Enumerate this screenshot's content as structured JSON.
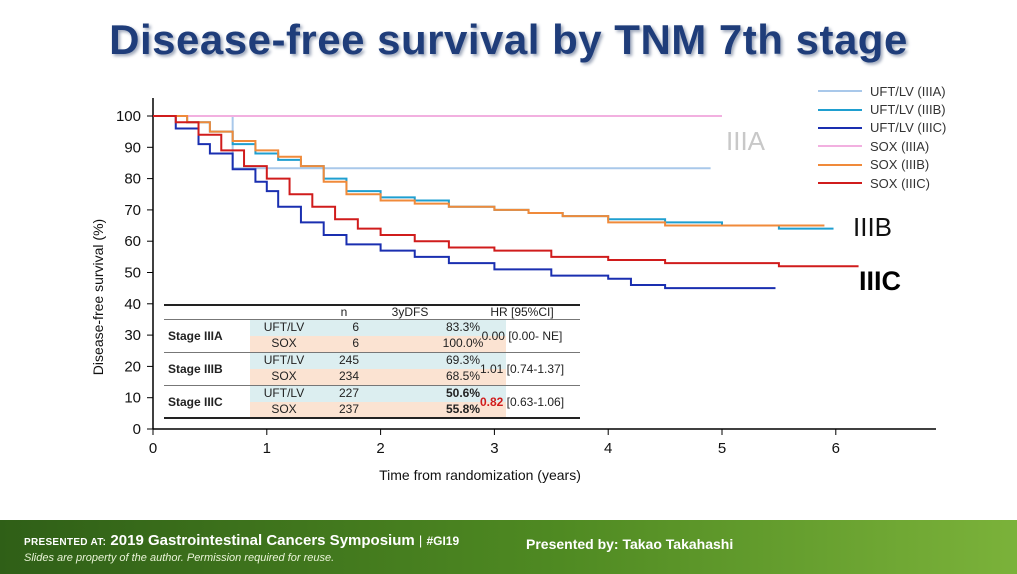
{
  "title": "Disease-free survival by TNM 7th stage",
  "chart_data": {
    "type": "line",
    "title": "Disease-free survival by TNM 7th stage",
    "xlabel": "Time from randomization (years)",
    "ylabel": "Disease-free survival (%)",
    "xlim": [
      0,
      7
    ],
    "ylim": [
      0,
      100
    ],
    "xticks": [
      0,
      1,
      2,
      3,
      4,
      5,
      6
    ],
    "yticks": [
      0,
      10,
      20,
      30,
      40,
      50,
      60,
      70,
      80,
      90,
      100
    ],
    "legend_position": "top-right",
    "series": [
      {
        "name": "UFT/LV (IIIA)",
        "color": "#a9c8ea",
        "x": [
          0,
          0.7,
          0.7,
          1.5,
          4.9
        ],
        "y": [
          100,
          100,
          83.3,
          83.3,
          83.3
        ]
      },
      {
        "name": "UFT/LV (IIIB)",
        "color": "#1f9fd0",
        "x": [
          0,
          0.3,
          0.5,
          0.7,
          0.9,
          1.1,
          1.3,
          1.5,
          1.7,
          2.0,
          2.3,
          2.6,
          3.0,
          3.3,
          3.6,
          4.0,
          4.5,
          5.0,
          5.5,
          5.98
        ],
        "y": [
          100,
          98,
          95,
          91,
          88,
          86,
          84,
          80,
          76,
          74,
          73,
          71,
          70,
          69,
          68,
          67,
          66,
          65,
          64,
          64
        ]
      },
      {
        "name": "UFT/LV (IIIC)",
        "color": "#1a2fb0",
        "x": [
          0,
          0.2,
          0.4,
          0.5,
          0.7,
          0.9,
          1.0,
          1.1,
          1.3,
          1.5,
          1.7,
          2.0,
          2.3,
          2.6,
          3.0,
          3.5,
          4.0,
          4.2,
          4.5,
          5.0,
          5.47
        ],
        "y": [
          100,
          96,
          91,
          88,
          83,
          79,
          76,
          71,
          66,
          62,
          59,
          57,
          55,
          53,
          51,
          49,
          48,
          46,
          45,
          45,
          45
        ]
      },
      {
        "name": "SOX (IIIA)",
        "color": "#f2b0e0",
        "x": [
          0,
          5.0
        ],
        "y": [
          100,
          100
        ]
      },
      {
        "name": "SOX (IIIB)",
        "color": "#f08a3a",
        "x": [
          0,
          0.3,
          0.5,
          0.7,
          0.9,
          1.1,
          1.3,
          1.5,
          1.7,
          2.0,
          2.3,
          2.6,
          3.0,
          3.3,
          3.6,
          4.0,
          4.5,
          5.0,
          5.5,
          5.9
        ],
        "y": [
          100,
          98,
          95,
          92,
          89,
          87,
          84,
          79,
          75,
          73,
          72,
          71,
          70,
          69,
          68,
          66,
          65,
          65,
          65,
          65
        ]
      },
      {
        "name": "SOX (IIIC)",
        "color": "#d01c1c",
        "x": [
          0,
          0.2,
          0.4,
          0.6,
          0.8,
          1.0,
          1.2,
          1.4,
          1.6,
          1.8,
          2.0,
          2.3,
          2.6,
          3.0,
          3.5,
          4.0,
          4.5,
          5.0,
          5.5,
          6.2
        ],
        "y": [
          100,
          98,
          94,
          89,
          84,
          80,
          75,
          71,
          67,
          64,
          62,
          60,
          58,
          57,
          55,
          54,
          53,
          53,
          52,
          52
        ]
      }
    ],
    "annotations": [
      "IIIA",
      "IIIB",
      "IIIC"
    ]
  },
  "stage_labels": {
    "iiia": "IIIA",
    "iiib": "IIIB",
    "iiic": "IIIC"
  },
  "table": {
    "headers": {
      "n": "n",
      "dfs": "3yDFS",
      "hr": "HR [95%CI]"
    },
    "rows": [
      {
        "stage": "Stage IIIA",
        "uft": {
          "arm": "UFT/LV",
          "n": "6",
          "dfs": "83.3%"
        },
        "sox": {
          "arm": "SOX",
          "n": "6",
          "dfs": "100.0%"
        },
        "hr_value": "0.00",
        "hr_ci": "[0.00- NE]"
      },
      {
        "stage": "Stage IIIB",
        "uft": {
          "arm": "UFT/LV",
          "n": "245",
          "dfs": "69.3%"
        },
        "sox": {
          "arm": "SOX",
          "n": "234",
          "dfs": "68.5%"
        },
        "hr_value": "1.01",
        "hr_ci": "[0.74-1.37]"
      },
      {
        "stage": "Stage IIIC",
        "uft": {
          "arm": "UFT/LV",
          "n": "227",
          "dfs": "50.6%"
        },
        "sox": {
          "arm": "SOX",
          "n": "237",
          "dfs": "55.8%"
        },
        "hr_value": "0.82",
        "hr_ci": "[0.63-1.06]"
      }
    ]
  },
  "footer": {
    "presented_at_label": "PRESENTED AT:",
    "symposium": "2019 Gastrointestinal Cancers Symposium",
    "separator": "|",
    "hashtag": "#GI19",
    "note": "Slides are property of the author. Permission required for reuse.",
    "presenter": "Presented  by: Takao Takahashi"
  }
}
